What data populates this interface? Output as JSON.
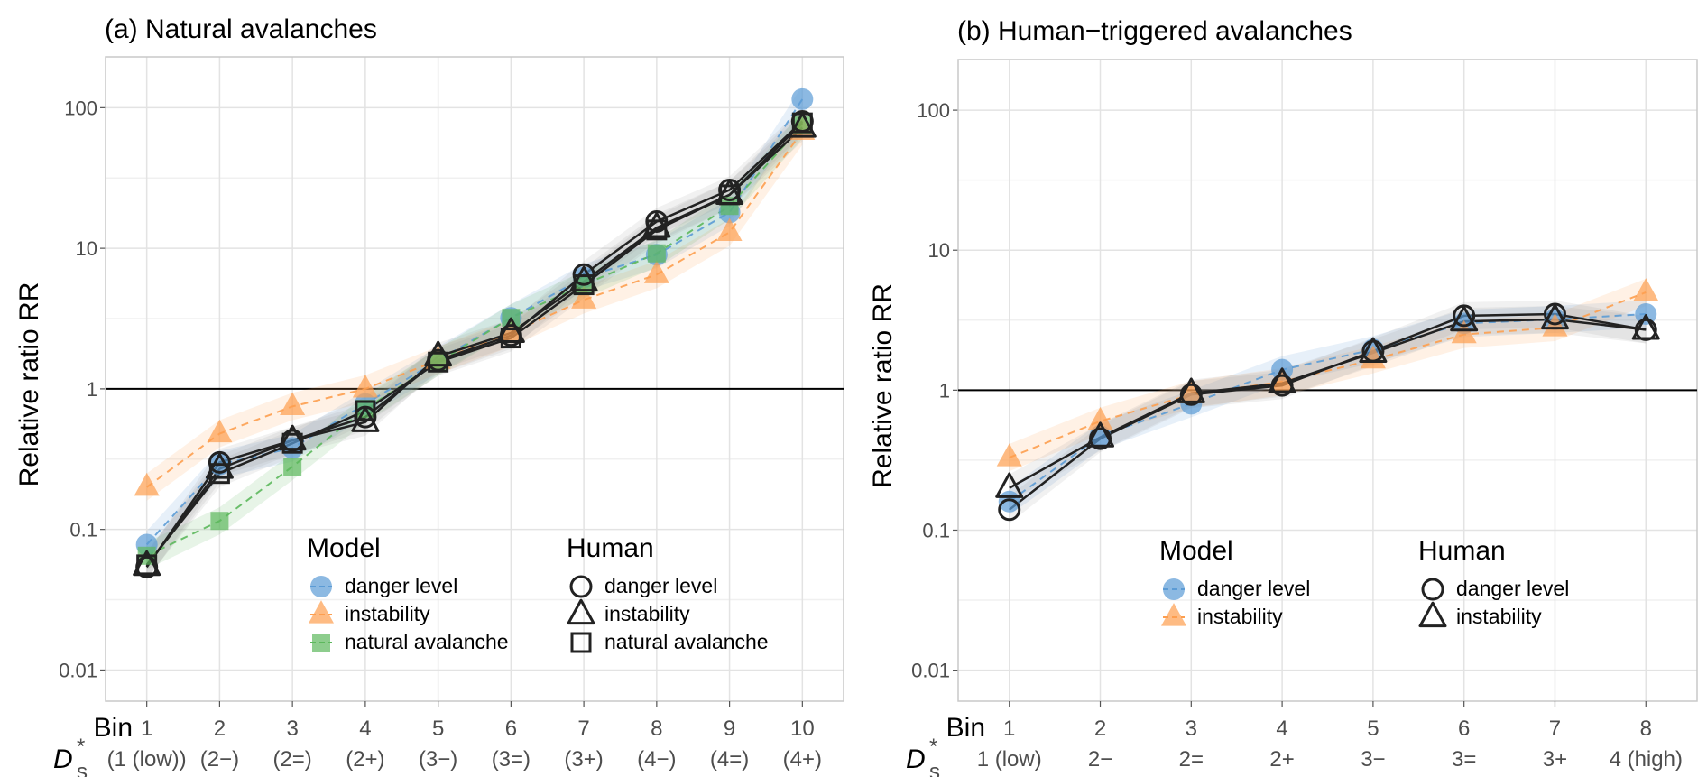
{
  "chart_data": [
    {
      "type": "line",
      "title": "(a) Natural avalanches",
      "xlabel_rows": [
        "Bin",
        "D_s*"
      ],
      "ylabel": "Relative ratio RR",
      "yscale": "log",
      "ylim": [
        0.006,
        230
      ],
      "yticks": [
        {
          "value": 100,
          "label": "100"
        },
        {
          "value": 10,
          "label": "10"
        },
        {
          "value": 1,
          "label": "1"
        },
        {
          "value": 0.1,
          "label": "0.1"
        },
        {
          "value": 0.01,
          "label": "0.01"
        }
      ],
      "reference_line": 1,
      "grid": true,
      "x": [
        1,
        2,
        3,
        4,
        5,
        6,
        7,
        8,
        9,
        10
      ],
      "x_bin_labels": [
        "1",
        "2",
        "3",
        "4",
        "5",
        "6",
        "7",
        "8",
        "9",
        "10"
      ],
      "x_ds_labels": [
        "(1 (low))",
        "(2−)",
        "(2=)",
        "(2+)",
        "(3−)",
        "(3=)",
        "(3+)",
        "(4−)",
        "(4=)",
        "(4+)"
      ],
      "series": [
        {
          "name": "danger level",
          "group": "Model",
          "marker": "circle-filled",
          "color": "#5b9bd5",
          "values": [
            0.078,
            0.29,
            0.38,
            0.78,
            1.6,
            3.2,
            6.2,
            9.0,
            18,
            115
          ]
        },
        {
          "name": "instability",
          "group": "Model",
          "marker": "triangle-filled",
          "color": "#fd9e4f",
          "values": [
            0.2,
            0.48,
            0.75,
            1.0,
            1.6,
            2.5,
            4.3,
            6.5,
            13,
            68
          ]
        },
        {
          "name": "natural avalanche",
          "group": "Model",
          "marker": "square-filled",
          "color": "#5cb85c",
          "values": [
            0.065,
            0.115,
            0.28,
            0.72,
            1.55,
            3.2,
            5.5,
            9.2,
            20,
            75
          ]
        },
        {
          "name": "danger level",
          "group": "Human",
          "marker": "circle-open",
          "color": "#222222",
          "values": [
            0.054,
            0.3,
            0.43,
            0.63,
            1.6,
            2.4,
            6.5,
            15.5,
            26,
            80
          ]
        },
        {
          "name": "instability",
          "group": "Human",
          "marker": "triangle-open",
          "color": "#222222",
          "values": [
            0.055,
            0.27,
            0.43,
            0.58,
            1.7,
            2.5,
            5.8,
            14,
            24,
            72
          ]
        },
        {
          "name": "natural avalanche",
          "group": "Human",
          "marker": "square-open",
          "color": "#222222",
          "values": [
            0.056,
            0.25,
            0.41,
            0.7,
            1.55,
            2.3,
            5.5,
            13.5,
            24,
            78
          ]
        }
      ],
      "legend": {
        "placement": "bottom-right",
        "groups": [
          {
            "title": "Model",
            "items": [
              "danger level",
              "instability",
              "natural avalanche"
            ]
          },
          {
            "title": "Human",
            "items": [
              "danger level",
              "instability",
              "natural avalanche"
            ]
          }
        ]
      }
    },
    {
      "type": "line",
      "title": "(b) Human−triggered avalanches",
      "xlabel_rows": [
        "Bin",
        "D_s*"
      ],
      "ylabel": "Relative ratio RR",
      "yscale": "log",
      "ylim": [
        0.006,
        230
      ],
      "yticks": [
        {
          "value": 100,
          "label": "100"
        },
        {
          "value": 10,
          "label": "10"
        },
        {
          "value": 1,
          "label": "1"
        },
        {
          "value": 0.1,
          "label": "0.1"
        },
        {
          "value": 0.01,
          "label": "0.01"
        }
      ],
      "reference_line": 1,
      "grid": true,
      "x": [
        1,
        2,
        3,
        4,
        5,
        6,
        7,
        8
      ],
      "x_bin_labels": [
        "1",
        "2",
        "3",
        "4",
        "5",
        "6",
        "7",
        "8"
      ],
      "x_ds_labels": [
        "1 (low)",
        "2−",
        "2=",
        "2+",
        "3−",
        "3=",
        "3+",
        "4 (high)"
      ],
      "series": [
        {
          "name": "danger level",
          "group": "Model",
          "marker": "circle-filled",
          "color": "#5b9bd5",
          "values": [
            0.16,
            0.47,
            0.8,
            1.4,
            1.95,
            3.0,
            3.2,
            3.5
          ]
        },
        {
          "name": "instability",
          "group": "Model",
          "marker": "triangle-filled",
          "color": "#fd9e4f",
          "values": [
            0.33,
            0.6,
            0.93,
            1.15,
            1.65,
            2.5,
            2.8,
            5.0
          ]
        },
        {
          "name": "danger level",
          "group": "Human",
          "marker": "circle-open",
          "color": "#222222",
          "values": [
            0.14,
            0.45,
            0.93,
            1.08,
            1.9,
            3.4,
            3.5,
            2.7
          ]
        },
        {
          "name": "instability",
          "group": "Human",
          "marker": "triangle-open",
          "color": "#222222",
          "values": [
            0.2,
            0.46,
            0.95,
            1.12,
            1.85,
            3.1,
            3.2,
            2.7
          ]
        }
      ],
      "legend": {
        "placement": "bottom-center",
        "groups": [
          {
            "title": "Model",
            "items": [
              "danger level",
              "instability"
            ]
          },
          {
            "title": "Human",
            "items": [
              "danger level",
              "instability"
            ]
          }
        ]
      }
    }
  ]
}
